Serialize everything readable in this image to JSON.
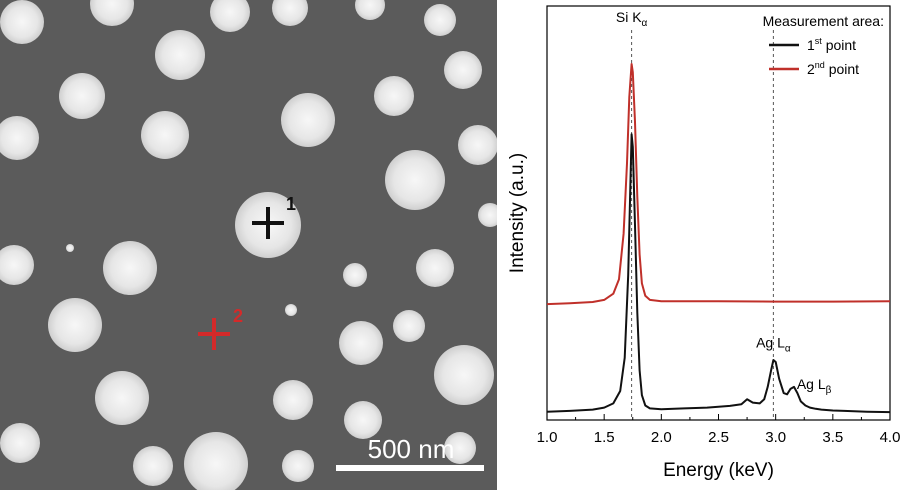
{
  "sem_image": {
    "scale_bar_label": "500 nm",
    "markers": [
      {
        "label": "1",
        "color": "#111111"
      },
      {
        "label": "2",
        "color": "#d42a2a"
      }
    ]
  },
  "chart_data": {
    "type": "line",
    "xlabel": "Energy (keV)",
    "ylabel": "Intensity (a.u.)",
    "xlim": [
      1.0,
      4.0
    ],
    "ylim": [
      0,
      1
    ],
    "x_ticks": [
      "1.0",
      "1.5",
      "2.0",
      "2.5",
      "3.0",
      "3.5",
      "4.0"
    ],
    "grid": false,
    "legend": {
      "title": "Measurement area:",
      "placement": "top-right",
      "entries": [
        {
          "label": "1",
          "sup": "st",
          "suffix": " point",
          "color": "#111111"
        },
        {
          "label": "2",
          "sup": "nd",
          "suffix": " point",
          "color": "#c0302a"
        }
      ]
    },
    "annotations": [
      {
        "text": "Si K",
        "sub": "α",
        "x": 1.74
      },
      {
        "text": "Ag L",
        "sub": "α",
        "x": 2.98
      },
      {
        "text": "Ag L",
        "sub": "β",
        "x": 3.15
      }
    ],
    "reference_lines_x": [
      1.74,
      2.98
    ],
    "series": [
      {
        "name": "1st point",
        "color": "#111111",
        "x": [
          1.0,
          1.2,
          1.4,
          1.5,
          1.58,
          1.64,
          1.68,
          1.71,
          1.73,
          1.74,
          1.75,
          1.77,
          1.79,
          1.81,
          1.83,
          1.86,
          1.9,
          2.0,
          2.2,
          2.4,
          2.6,
          2.7,
          2.75,
          2.8,
          2.86,
          2.9,
          2.93,
          2.96,
          2.98,
          3.0,
          3.03,
          3.07,
          3.1,
          3.13,
          3.16,
          3.19,
          3.22,
          3.26,
          3.3,
          3.35,
          3.4,
          3.5,
          3.6,
          3.8,
          4.0
        ],
        "y": [
          0.02,
          0.022,
          0.025,
          0.03,
          0.04,
          0.07,
          0.15,
          0.35,
          0.58,
          0.69,
          0.66,
          0.47,
          0.26,
          0.12,
          0.06,
          0.035,
          0.028,
          0.026,
          0.028,
          0.03,
          0.034,
          0.038,
          0.05,
          0.042,
          0.04,
          0.05,
          0.08,
          0.12,
          0.145,
          0.14,
          0.1,
          0.065,
          0.062,
          0.075,
          0.08,
          0.065,
          0.045,
          0.035,
          0.03,
          0.027,
          0.025,
          0.023,
          0.022,
          0.02,
          0.019
        ]
      },
      {
        "name": "2nd point",
        "color": "#c0302a",
        "x": [
          1.0,
          1.2,
          1.4,
          1.5,
          1.58,
          1.63,
          1.67,
          1.7,
          1.72,
          1.74,
          1.75,
          1.77,
          1.79,
          1.81,
          1.83,
          1.86,
          1.9,
          2.0,
          2.5,
          3.0,
          3.5,
          4.0
        ],
        "y": [
          0.28,
          0.282,
          0.285,
          0.29,
          0.305,
          0.34,
          0.45,
          0.62,
          0.78,
          0.86,
          0.84,
          0.72,
          0.54,
          0.4,
          0.33,
          0.3,
          0.29,
          0.287,
          0.287,
          0.286,
          0.286,
          0.287
        ]
      }
    ]
  }
}
